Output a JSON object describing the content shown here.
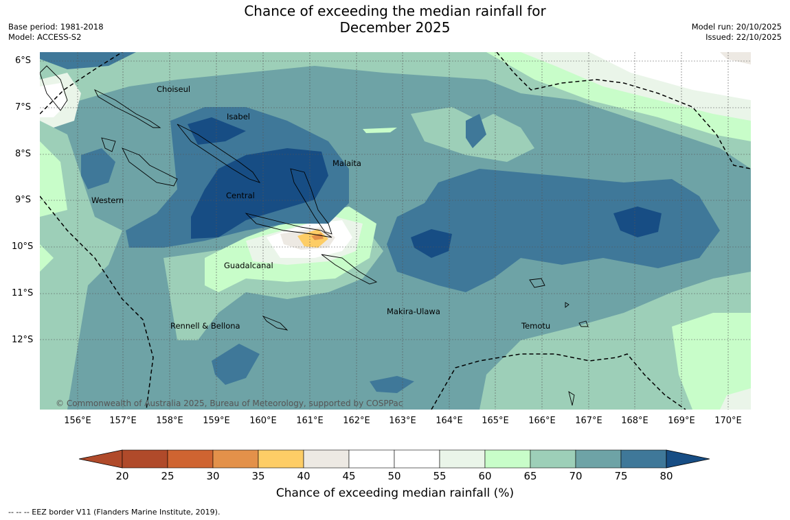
{
  "title_line1": "Chance of exceeding the median rainfall for",
  "title_line2": "December 2025",
  "base_period": "Base period: 1981-2018",
  "model": "Model: ACCESS-S2",
  "model_run": "Model run: 20/10/2025",
  "issued": "Issued: 22/10/2025",
  "copyright": "© Commonwealth of Australia 2025, Bureau of Meteorology, supported by COSPPac",
  "lat_labels": [
    "6°S",
    "7°S",
    "8°S",
    "9°S",
    "10°S",
    "11°S",
    "12°S"
  ],
  "lon_labels": [
    "156°E",
    "157°E",
    "158°E",
    "159°E",
    "160°E",
    "161°E",
    "162°E",
    "163°E",
    "164°E",
    "165°E",
    "166°E",
    "167°E",
    "168°E",
    "169°E",
    "170°E"
  ],
  "regions": {
    "choiseul": "Choiseul",
    "isabel": "Isabel",
    "malaita": "Malaita",
    "western": "Western",
    "central": "Central",
    "guadalcanal": "Guadalcanal",
    "makira": "Makira-Ulawa",
    "rennell": "Rennell & Bellona",
    "temotu": "Temotu"
  },
  "colorbar": {
    "title": "Chance of exceeding median rainfall (%)",
    "ticks": [
      "20",
      "25",
      "30",
      "35",
      "40",
      "45",
      "50",
      "55",
      "60",
      "65",
      "70",
      "75",
      "80"
    ],
    "colors": [
      "#b04a2a",
      "#cf6431",
      "#e3914a",
      "#fdcd66",
      "#ede9e3",
      "#ffffff",
      "#ffffff",
      "#eaf5e9",
      "#c8fdc9",
      "#9dcfb8",
      "#6ea3a6",
      "#3f7899",
      "#174d84"
    ]
  },
  "footnote": "--  --  -- EEZ border V11 (Flanders Marine Institute, 2019)."
}
